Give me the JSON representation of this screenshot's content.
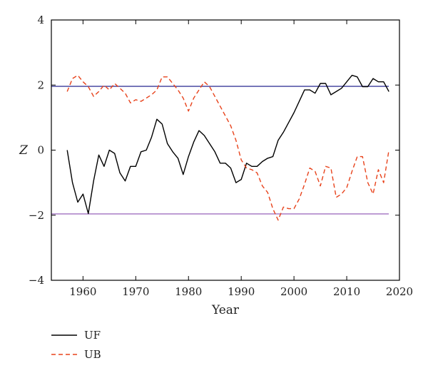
{
  "chart_data": {
    "type": "line",
    "xlabel": "Year",
    "ylabel": "Z",
    "xlim": [
      1954,
      2020
    ],
    "ylim": [
      -4,
      4
    ],
    "x_ticks": [
      1960,
      1970,
      1980,
      1990,
      2000,
      2010,
      2020
    ],
    "y_ticks": [
      -4,
      -2,
      0,
      2,
      4
    ],
    "reference_lines": [
      {
        "y": 1.96,
        "color": "#3a3a9a"
      },
      {
        "y": -1.96,
        "color": "#a070c0"
      }
    ],
    "legend_position": "bottom-left, below plot",
    "series": [
      {
        "name": "UF",
        "color": "#000000",
        "style": "solid",
        "x": [
          1957,
          1958,
          1959,
          1960,
          1961,
          1962,
          1963,
          1964,
          1965,
          1966,
          1967,
          1968,
          1969,
          1970,
          1971,
          1972,
          1973,
          1974,
          1975,
          1976,
          1977,
          1978,
          1979,
          1980,
          1981,
          1982,
          1983,
          1984,
          1985,
          1986,
          1987,
          1988,
          1989,
          1990,
          1991,
          1992,
          1993,
          1994,
          1995,
          1996,
          1997,
          1998,
          1999,
          2000,
          2001,
          2002,
          2003,
          2004,
          2005,
          2006,
          2007,
          2008,
          2009,
          2010,
          2011,
          2012,
          2013,
          2014,
          2015,
          2016,
          2017,
          2018
        ],
        "values": [
          0.0,
          -1.0,
          -1.6,
          -1.35,
          -1.95,
          -0.95,
          -0.15,
          -0.5,
          0.0,
          -0.1,
          -0.7,
          -0.95,
          -0.5,
          -0.5,
          -0.05,
          0.0,
          0.4,
          0.95,
          0.8,
          0.2,
          -0.05,
          -0.25,
          -0.75,
          -0.2,
          0.25,
          0.6,
          0.45,
          0.2,
          -0.05,
          -0.4,
          -0.4,
          -0.55,
          -1.0,
          -0.9,
          -0.4,
          -0.5,
          -0.5,
          -0.35,
          -0.25,
          -0.2,
          0.3,
          0.55,
          0.85,
          1.15,
          1.5,
          1.85,
          1.85,
          1.75,
          2.05,
          2.05,
          1.7,
          1.8,
          1.9,
          2.1,
          2.3,
          2.25,
          1.95,
          1.95,
          2.2,
          2.1,
          2.1,
          1.8
        ]
      },
      {
        "name": "UB",
        "color": "#e8431c",
        "style": "dashed",
        "x": [
          1957,
          1958,
          1959,
          1960,
          1961,
          1962,
          1963,
          1964,
          1965,
          1966,
          1967,
          1968,
          1969,
          1970,
          1971,
          1972,
          1973,
          1974,
          1975,
          1976,
          1977,
          1978,
          1979,
          1980,
          1981,
          1982,
          1983,
          1984,
          1985,
          1986,
          1987,
          1988,
          1989,
          1990,
          1991,
          1992,
          1993,
          1994,
          1995,
          1996,
          1997,
          1998,
          1999,
          2000,
          2001,
          2002,
          2003,
          2004,
          2005,
          2006,
          2007,
          2008,
          2009,
          2010,
          2011,
          2012,
          2013,
          2014,
          2015,
          2016,
          2017,
          2018
        ],
        "values": [
          1.8,
          2.2,
          2.3,
          2.1,
          1.95,
          1.65,
          1.8,
          2.0,
          1.85,
          2.05,
          1.9,
          1.75,
          1.45,
          1.55,
          1.5,
          1.6,
          1.7,
          1.85,
          2.25,
          2.25,
          2.05,
          1.85,
          1.6,
          1.2,
          1.6,
          1.85,
          2.1,
          1.95,
          1.65,
          1.35,
          1.05,
          0.75,
          0.3,
          -0.3,
          -0.55,
          -0.6,
          -0.7,
          -1.1,
          -1.3,
          -1.8,
          -2.15,
          -1.75,
          -1.8,
          -1.8,
          -1.5,
          -1.05,
          -0.55,
          -0.65,
          -1.1,
          -0.5,
          -0.55,
          -1.45,
          -1.35,
          -1.15,
          -0.65,
          -0.2,
          -0.2,
          -1.0,
          -1.35,
          -0.6,
          -1.0,
          0.0
        ]
      }
    ]
  }
}
